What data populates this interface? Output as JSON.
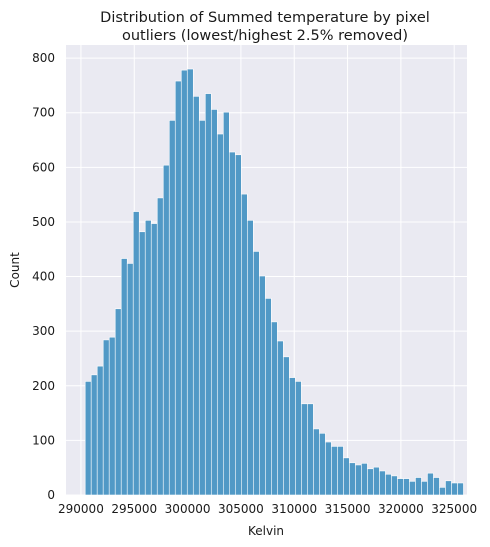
{
  "chart_data": {
    "type": "bar",
    "title_lines": [
      "Distribution of Summed temperature by pixel",
      "outliers (lowest/highest 2.5% removed)"
    ],
    "xlabel": "Kelvin",
    "ylabel": "Count",
    "xlim": [
      288600,
      326200
    ],
    "ylim": [
      0,
      824
    ],
    "xticks": [
      290000,
      295000,
      300000,
      305000,
      310000,
      315000,
      320000,
      325000
    ],
    "yticks": [
      0,
      100,
      200,
      300,
      400,
      500,
      600,
      700,
      800
    ],
    "grid": true,
    "bin_start": 290400,
    "bin_width": 563,
    "values": [
      208,
      220,
      236,
      284,
      289,
      341,
      433,
      424,
      519,
      482,
      503,
      497,
      544,
      604,
      686,
      758,
      778,
      780,
      730,
      686,
      735,
      706,
      661,
      701,
      628,
      623,
      551,
      503,
      446,
      401,
      360,
      317,
      282,
      253,
      215,
      208,
      167,
      167,
      121,
      113,
      97,
      89,
      89,
      68,
      59,
      55,
      58,
      48,
      51,
      44,
      38,
      35,
      30,
      30,
      25,
      32,
      25,
      40,
      32,
      14,
      26,
      22,
      22
    ],
    "colors": {
      "bar": "#5199c6",
      "bar_edge": "#ffffff",
      "plot_bg": "#eaeaf2",
      "grid": "#ffffff"
    }
  }
}
